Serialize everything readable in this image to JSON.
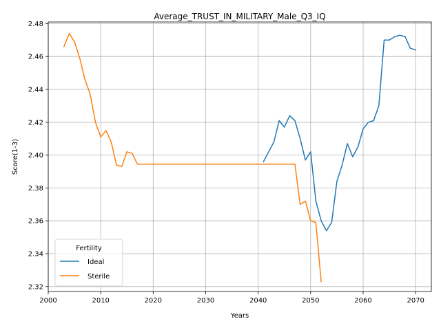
{
  "chart_data": {
    "type": "line",
    "title": "Average_TRUST_IN_MILITARY_Male_Q3_IQ",
    "xlabel": "Years",
    "ylabel": "Score(1-3)",
    "xlim": [
      2000,
      2073
    ],
    "ylim": [
      2.317,
      2.481
    ],
    "xticks": [
      2000,
      2010,
      2020,
      2030,
      2040,
      2050,
      2060,
      2070
    ],
    "yticks": [
      2.32,
      2.34,
      2.36,
      2.38,
      2.4,
      2.42,
      2.44,
      2.46,
      2.48
    ],
    "xtick_labels": [
      "2000",
      "2010",
      "2020",
      "2030",
      "2040",
      "2050",
      "2060",
      "2070"
    ],
    "ytick_labels": [
      "2.32",
      "2.34",
      "2.36",
      "2.38",
      "2.40",
      "2.42",
      "2.44",
      "2.46",
      "2.48"
    ],
    "grid": true,
    "legend": {
      "title": "Fertility",
      "position": "lower-left"
    },
    "series": [
      {
        "name": "Ideal",
        "color": "#1f77b4",
        "x": [
          2041,
          2042,
          2043,
          2044,
          2045,
          2046,
          2047,
          2048,
          2049,
          2050,
          2051,
          2052,
          2053,
          2054,
          2055,
          2056,
          2057,
          2058,
          2059,
          2060,
          2061,
          2062,
          2063,
          2064,
          2065,
          2066,
          2067,
          2068,
          2069,
          2070
        ],
        "y": [
          2.396,
          2.402,
          2.408,
          2.421,
          2.417,
          2.424,
          2.421,
          2.41,
          2.397,
          2.402,
          2.372,
          2.36,
          2.354,
          2.359,
          2.384,
          2.394,
          2.407,
          2.399,
          2.405,
          2.416,
          2.42,
          2.421,
          2.43,
          2.47,
          2.47,
          2.472,
          2.473,
          2.472,
          2.465,
          2.464
        ]
      },
      {
        "name": "Sterile",
        "color": "#ff7f0e",
        "x": [
          2003,
          2004,
          2005,
          2006,
          2007,
          2008,
          2009,
          2010,
          2011,
          2012,
          2013,
          2014,
          2015,
          2016,
          2017,
          2018,
          2019,
          2020,
          2025,
          2030,
          2035,
          2040,
          2045,
          2046,
          2047,
          2048,
          2049,
          2050,
          2051,
          2052
        ],
        "y": [
          2.466,
          2.474,
          2.469,
          2.459,
          2.446,
          2.437,
          2.42,
          2.411,
          2.415,
          2.408,
          2.394,
          2.393,
          2.402,
          2.401,
          2.3945,
          2.3945,
          2.3945,
          2.3945,
          2.3945,
          2.3945,
          2.3945,
          2.3945,
          2.3945,
          2.3945,
          2.3945,
          2.37,
          2.372,
          2.36,
          2.359,
          2.323
        ]
      }
    ]
  }
}
